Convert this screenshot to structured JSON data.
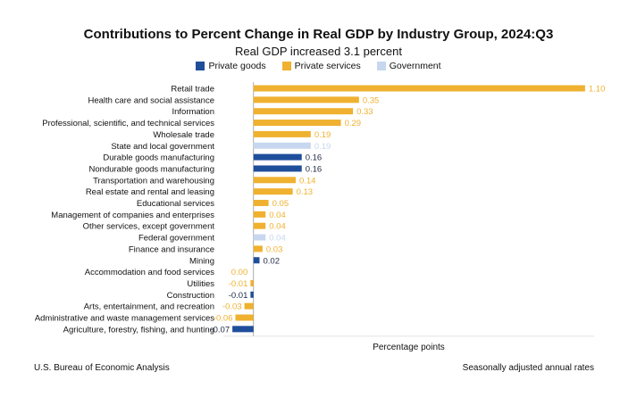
{
  "colors": {
    "private_goods": "#1f4e9b",
    "private_services": "#efb12f",
    "government": "#c7d7ef",
    "axis": "#999999",
    "label_text": "#111111"
  },
  "legend": {
    "private_goods": "Private goods",
    "private_services": "Private services",
    "government": "Government"
  },
  "footer": {
    "source": "U.S. Bureau of Economic Analysis",
    "note": "Seasonally adjusted annual rates"
  },
  "chart_data": {
    "type": "bar",
    "orientation": "horizontal",
    "title": "Contributions to Percent Change in Real GDP by Industry Group, 2024:Q3",
    "subtitle": "Real GDP increased 3.1 percent",
    "xlabel": "Percentage points",
    "ylabel": "",
    "xlim": [
      -0.1,
      1.13
    ],
    "categories": [
      "Retail trade",
      "Health care and social assistance",
      "Information",
      "Professional, scientific, and technical services",
      "Wholesale trade",
      "State and local government",
      "Durable goods manufacturing",
      "Nondurable goods manufacturing",
      "Transportation and warehousing",
      "Real estate and rental and leasing",
      "Educational services",
      "Management of companies and enterprises",
      "Other services, except government",
      "Federal government",
      "Finance and insurance",
      "Mining",
      "Accommodation and food services",
      "Utilities",
      "Construction",
      "Arts, entertainment, and recreation",
      "Administrative and waste management services",
      "Agriculture, forestry, fishing, and hunting"
    ],
    "values": [
      1.1,
      0.35,
      0.33,
      0.29,
      0.19,
      0.19,
      0.16,
      0.16,
      0.14,
      0.13,
      0.05,
      0.04,
      0.04,
      0.04,
      0.03,
      0.02,
      0.0,
      -0.01,
      -0.01,
      -0.03,
      -0.06,
      -0.07
    ],
    "labels": [
      "1.10",
      "0.35",
      "0.33",
      "0.29",
      "0.19",
      "0.19",
      "0.16",
      "0.16",
      "0.14",
      "0.13",
      "0.05",
      "0.04",
      "0.04",
      "0.04",
      "0.03",
      "0.02",
      "0.00",
      "-0.01",
      "-0.01",
      "-0.03",
      "-0.06",
      "-0.07"
    ],
    "groups": [
      "private_services",
      "private_services",
      "private_services",
      "private_services",
      "private_services",
      "government",
      "private_goods",
      "private_goods",
      "private_services",
      "private_services",
      "private_services",
      "private_services",
      "private_services",
      "government",
      "private_services",
      "private_goods",
      "private_services",
      "private_services",
      "private_goods",
      "private_services",
      "private_services",
      "private_goods"
    ],
    "grid": false,
    "legend_position": "top-center"
  }
}
